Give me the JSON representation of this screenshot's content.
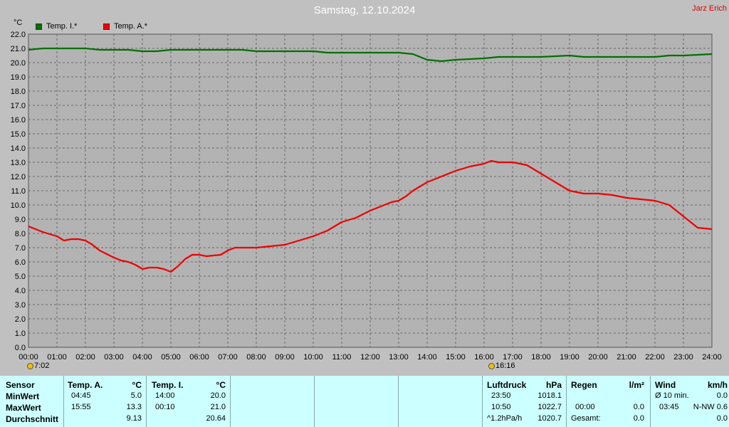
{
  "header": {
    "title": "Samstag, 12.10.2024",
    "author": "Jarz Erich",
    "unit": "°C"
  },
  "legend": [
    {
      "label": "Temp. I.*",
      "color": "#007000"
    },
    {
      "label": "Temp. A.*",
      "color": "#ee0000"
    }
  ],
  "markers": {
    "sunrise": "7:02",
    "sunset": "16:16"
  },
  "chart_data": {
    "type": "line",
    "title": "Samstag, 12.10.2024",
    "ylabel": "°C",
    "ylim": [
      0,
      22
    ],
    "xlim": [
      0,
      24
    ],
    "y_ticks": [
      "0.0",
      "1.0",
      "2.0",
      "3.0",
      "4.0",
      "5.0",
      "6.0",
      "7.0",
      "8.0",
      "9.0",
      "10.0",
      "11.0",
      "12.0",
      "13.0",
      "14.0",
      "15.0",
      "16.0",
      "17.0",
      "18.0",
      "19.0",
      "20.0",
      "21.0",
      "22.0"
    ],
    "x_ticks": [
      "00:00",
      "01:00",
      "02:00",
      "03:00",
      "04:00",
      "05:00",
      "06:00",
      "07:00",
      "08:00",
      "09:00",
      "10:00",
      "11:00",
      "12:00",
      "13:00",
      "14:00",
      "15:00",
      "16:00",
      "17:00",
      "18:00",
      "19:00",
      "20:00",
      "21:00",
      "22:00",
      "23:00",
      "24:00"
    ],
    "grid": true,
    "legend_position": "top-left",
    "series": [
      {
        "name": "Temp. I.*",
        "color": "#007000",
        "points": [
          [
            0,
            20.9
          ],
          [
            0.5,
            21.0
          ],
          [
            1,
            21.0
          ],
          [
            2,
            21.0
          ],
          [
            2.5,
            20.9
          ],
          [
            3.5,
            20.9
          ],
          [
            4,
            20.8
          ],
          [
            4.5,
            20.8
          ],
          [
            5,
            20.9
          ],
          [
            6,
            20.9
          ],
          [
            7,
            20.9
          ],
          [
            7.5,
            20.9
          ],
          [
            8,
            20.8
          ],
          [
            9,
            20.8
          ],
          [
            10,
            20.8
          ],
          [
            10.5,
            20.7
          ],
          [
            11,
            20.7
          ],
          [
            12,
            20.7
          ],
          [
            13,
            20.7
          ],
          [
            13.5,
            20.6
          ],
          [
            14,
            20.2
          ],
          [
            14.5,
            20.1
          ],
          [
            15,
            20.2
          ],
          [
            16,
            20.3
          ],
          [
            16.5,
            20.4
          ],
          [
            17,
            20.4
          ],
          [
            18,
            20.4
          ],
          [
            19,
            20.5
          ],
          [
            19.5,
            20.4
          ],
          [
            20,
            20.4
          ],
          [
            21,
            20.4
          ],
          [
            22,
            20.4
          ],
          [
            22.5,
            20.5
          ],
          [
            23,
            20.5
          ],
          [
            24,
            20.6
          ]
        ]
      },
      {
        "name": "Temp. A.*",
        "color": "#ee0000",
        "points": [
          [
            0,
            8.5
          ],
          [
            0.5,
            8.1
          ],
          [
            1,
            7.8
          ],
          [
            1.25,
            7.5
          ],
          [
            1.5,
            7.6
          ],
          [
            1.75,
            7.6
          ],
          [
            2,
            7.5
          ],
          [
            2.25,
            7.2
          ],
          [
            2.5,
            6.8
          ],
          [
            3,
            6.3
          ],
          [
            3.25,
            6.1
          ],
          [
            3.5,
            6.0
          ],
          [
            3.75,
            5.8
          ],
          [
            4,
            5.5
          ],
          [
            4.25,
            5.6
          ],
          [
            4.5,
            5.6
          ],
          [
            4.75,
            5.5
          ],
          [
            5,
            5.3
          ],
          [
            5.25,
            5.7
          ],
          [
            5.5,
            6.2
          ],
          [
            5.75,
            6.5
          ],
          [
            6,
            6.5
          ],
          [
            6.25,
            6.4
          ],
          [
            6.75,
            6.5
          ],
          [
            7,
            6.8
          ],
          [
            7.25,
            7.0
          ],
          [
            7.75,
            7.0
          ],
          [
            8,
            7.0
          ],
          [
            8.5,
            7.1
          ],
          [
            9,
            7.2
          ],
          [
            9.5,
            7.5
          ],
          [
            10,
            7.8
          ],
          [
            10.5,
            8.2
          ],
          [
            11,
            8.8
          ],
          [
            11.5,
            9.1
          ],
          [
            12,
            9.6
          ],
          [
            12.5,
            10.0
          ],
          [
            12.75,
            10.2
          ],
          [
            13,
            10.3
          ],
          [
            13.25,
            10.6
          ],
          [
            13.5,
            11.0
          ],
          [
            14,
            11.6
          ],
          [
            14.5,
            12.0
          ],
          [
            15,
            12.4
          ],
          [
            15.5,
            12.7
          ],
          [
            16,
            12.9
          ],
          [
            16.25,
            13.1
          ],
          [
            16.5,
            13.0
          ],
          [
            17,
            13.0
          ],
          [
            17.5,
            12.8
          ],
          [
            18,
            12.2
          ],
          [
            18.5,
            11.6
          ],
          [
            19,
            11.0
          ],
          [
            19.5,
            10.8
          ],
          [
            20,
            10.8
          ],
          [
            20.5,
            10.7
          ],
          [
            21,
            10.5
          ],
          [
            21.5,
            10.4
          ],
          [
            22,
            10.3
          ],
          [
            22.5,
            10.0
          ],
          [
            23,
            9.2
          ],
          [
            23.5,
            8.4
          ],
          [
            24,
            8.3
          ]
        ]
      }
    ]
  },
  "stats": {
    "sensor": {
      "title": "Sensor",
      "rows": [
        "MinWert",
        "MaxWert",
        "Durchschnitt"
      ]
    },
    "temp_a": {
      "title": "Temp. A.",
      "unit": "°C",
      "min_time": "04:45",
      "min": "5.0",
      "max_time": "15:55",
      "max": "13.3",
      "avg": "9.13"
    },
    "temp_i": {
      "title": "Temp. I.",
      "unit": "°C",
      "min_time": "14:00",
      "min": "20.0",
      "max_time": "00:10",
      "max": "21.0",
      "avg": "20.64"
    },
    "luftdruck": {
      "title": "Luftdruck",
      "unit": "hPa",
      "min_time": "23:50",
      "min": "1018.1",
      "max_time": "10:50",
      "max": "1022.7",
      "avg_label": "^1.2hPa/h",
      "avg": "1020.7"
    },
    "regen": {
      "title": "Regen",
      "unit": "l/m²",
      "max_time": "00:00",
      "max": "0.0",
      "total_label": "Gesamt:",
      "total": "0.0"
    },
    "wind": {
      "title": "Wind",
      "unit": "km/h",
      "min_label": "Ø 10 min.",
      "min": "0.0",
      "max_time": "03:45",
      "max": "N-NW 0.6",
      "avg": "0.0"
    }
  }
}
